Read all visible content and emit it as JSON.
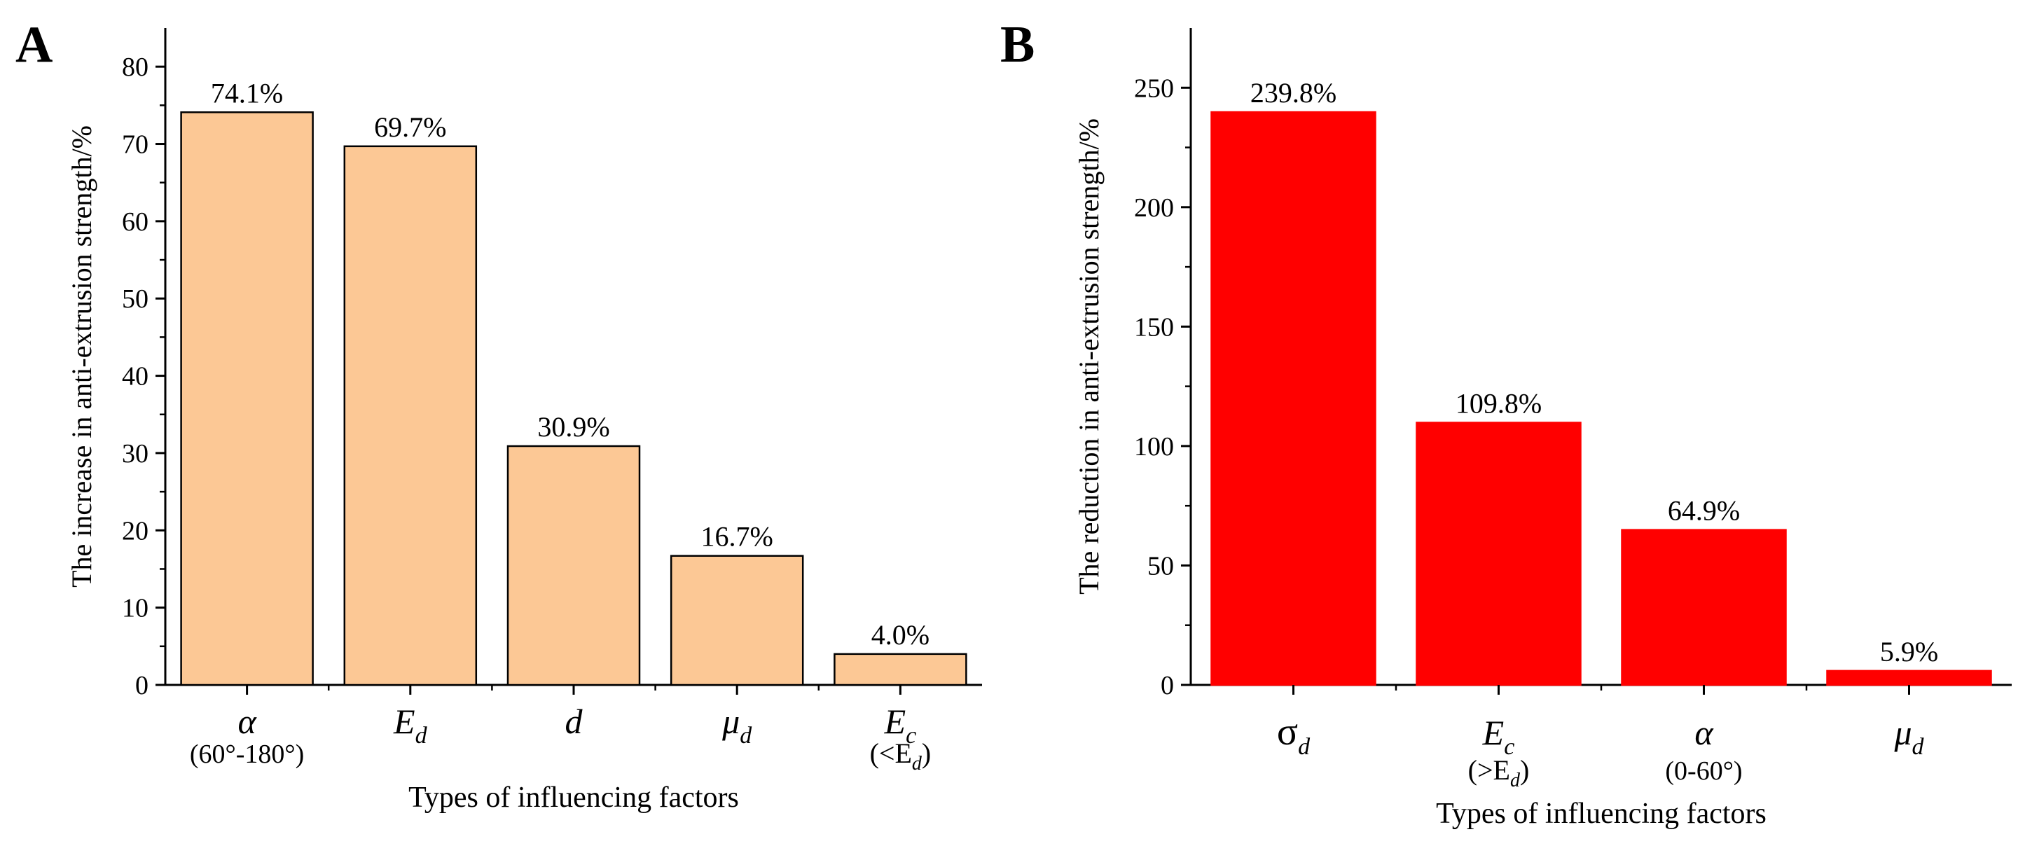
{
  "chart_data": [
    {
      "panel_label": "A",
      "type": "bar",
      "ylabel": "The increase in  anti-extrusion strength/%",
      "xlabel": "Types of influencing factors",
      "ylim": [
        0,
        85
      ],
      "yticks": [
        0,
        10,
        20,
        30,
        40,
        50,
        60,
        70,
        80
      ],
      "bar_color": "#FCC895",
      "bar_outline": "#000000",
      "categories": [
        {
          "main": "α",
          "sub": "",
          "note": "(60°-180°)"
        },
        {
          "main": "E",
          "sub": "d",
          "note": ""
        },
        {
          "main": "d",
          "sub": "",
          "note": ""
        },
        {
          "main": "μ",
          "sub": "d",
          "note": ""
        },
        {
          "main": "E",
          "sub": "c",
          "note_prefix": "(<E",
          "note_sub": "d",
          "note_suffix": ")"
        }
      ],
      "values": [
        74.1,
        69.7,
        30.9,
        16.7,
        4.0
      ],
      "data_labels": [
        "74.1%",
        "69.7%",
        "30.9%",
        "16.7%",
        "4.0%"
      ]
    },
    {
      "panel_label": "B",
      "type": "bar",
      "ylabel": "The reduction in anti-extrusion strength/%",
      "xlabel": "Types of influencing factors",
      "ylim": [
        0,
        275
      ],
      "yticks": [
        0,
        50,
        100,
        150,
        200,
        250
      ],
      "bar_color": "#FF0000",
      "bar_outline": "#FF0000",
      "categories": [
        {
          "main": "σ",
          "sub": "d",
          "note": ""
        },
        {
          "main": "E",
          "sub": "c",
          "note_prefix": "(>E",
          "note_sub": "d",
          "note_suffix": ")"
        },
        {
          "main": "α",
          "sub": "",
          "note": "(0-60°)"
        },
        {
          "main": "μ",
          "sub": "d",
          "note": ""
        }
      ],
      "values": [
        239.8,
        109.8,
        64.9,
        5.9
      ],
      "data_labels": [
        "239.8%",
        "109.8%",
        "64.9%",
        "5.9%"
      ]
    }
  ]
}
